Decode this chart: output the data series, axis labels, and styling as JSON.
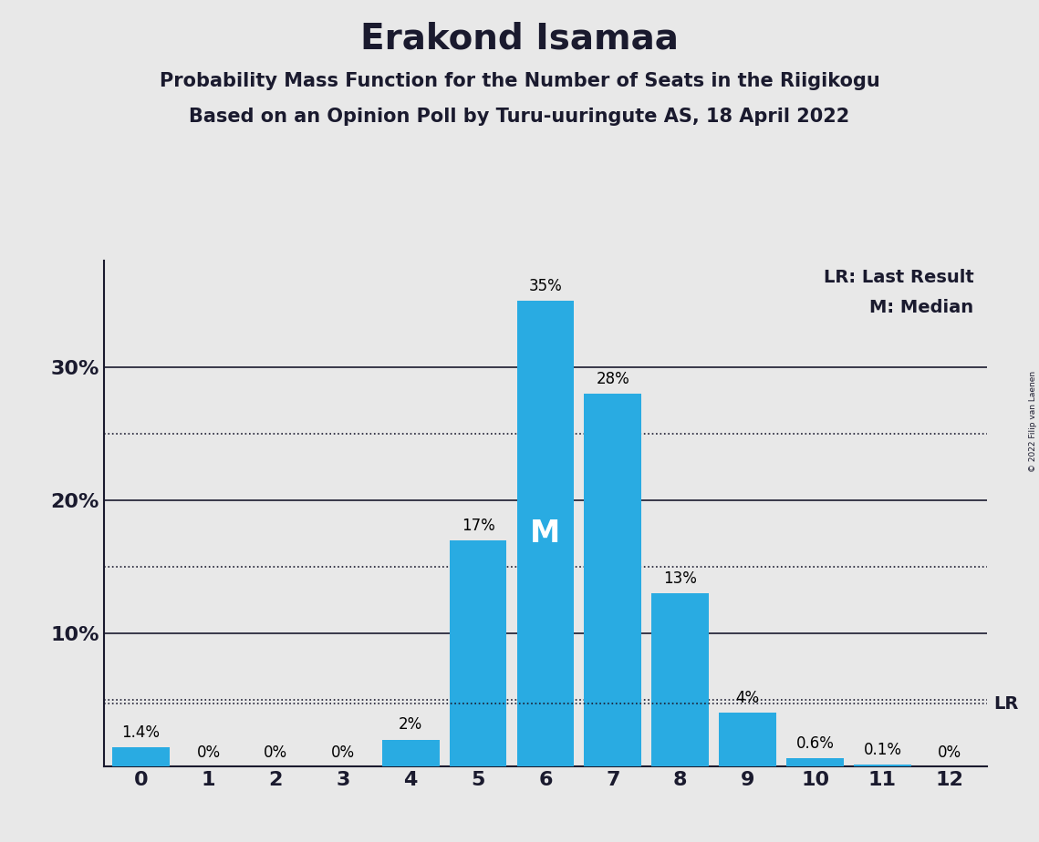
{
  "title": "Erakond Isamaa",
  "subtitle1": "Probability Mass Function for the Number of Seats in the Riigikogu",
  "subtitle2": "Based on an Opinion Poll by Turu-uuringute AS, 18 April 2022",
  "copyright": "© 2022 Filip van Laenen",
  "categories": [
    0,
    1,
    2,
    3,
    4,
    5,
    6,
    7,
    8,
    9,
    10,
    11,
    12
  ],
  "values": [
    1.4,
    0,
    0,
    0,
    2,
    17,
    35,
    28,
    13,
    4,
    0.6,
    0.1,
    0
  ],
  "labels": [
    "1.4%",
    "0%",
    "0%",
    "0%",
    "2%",
    "17%",
    "35%",
    "28%",
    "13%",
    "4%",
    "0.6%",
    "0.1%",
    "0%"
  ],
  "bar_color": "#29ABE2",
  "median_seat": 6,
  "median_label": "M",
  "lr_label": "LR",
  "lr_value": 4.7,
  "legend_lr": "LR: Last Result",
  "legend_m": "M: Median",
  "background_color": "#E8E8E8",
  "ylim": [
    0,
    38
  ],
  "solid_yticks": [
    10,
    20,
    30
  ],
  "dotted_yticks": [
    5,
    15,
    25
  ],
  "title_fontsize": 28,
  "subtitle_fontsize": 15,
  "label_fontsize": 12,
  "tick_fontsize": 16,
  "median_fontsize": 24,
  "legend_fontsize": 14,
  "bar_width": 0.85,
  "dot_linewidth": 1.2,
  "solid_linewidth": 1.2
}
